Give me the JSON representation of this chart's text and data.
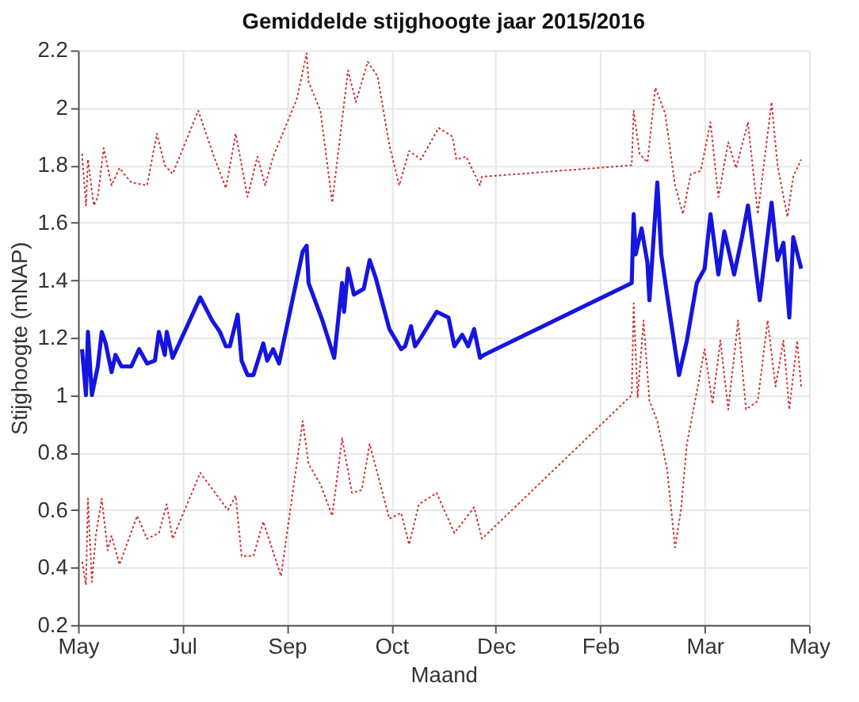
{
  "chart_data": {
    "type": "line",
    "title": "Gemiddelde stijghoogte jaar 2015/2016",
    "xlabel": "Maand",
    "ylabel": "Stijghoogte (mNAP)",
    "xlim": [
      "2015-05-18",
      "2016-05-23"
    ],
    "xticks": [
      {
        "value": "2015-05-18",
        "label": "May"
      },
      {
        "value": "2015-07-10",
        "label": "Jul"
      },
      {
        "value": "2015-09-01",
        "label": "Sep"
      },
      {
        "value": "2015-10-24",
        "label": "Oct"
      },
      {
        "value": "2015-12-16",
        "label": "Dec"
      },
      {
        "value": "2016-02-07",
        "label": "Feb"
      },
      {
        "value": "2016-03-31",
        "label": "Mar"
      },
      {
        "value": "2016-05-23",
        "label": "May"
      }
    ],
    "ylim": [
      0.2,
      2.2
    ],
    "yticks": [
      0.2,
      0.4,
      0.6,
      0.8,
      1,
      1.2,
      1.4,
      1.6,
      1.8,
      2,
      2.2
    ],
    "grid": true,
    "marker": "none",
    "series": [
      {
        "color": "#d03030",
        "line_style": "dotted",
        "x": [
          "2015-05-20",
          "2015-05-22",
          "2015-05-23",
          "2015-05-26",
          "2015-05-28",
          "2015-05-31",
          "2015-06-04",
          "2015-06-08",
          "2015-06-14",
          "2015-06-22",
          "2015-06-27",
          "2015-07-01",
          "2015-07-05",
          "2015-07-18",
          "2015-07-26",
          "2015-08-01",
          "2015-08-06",
          "2015-08-12",
          "2015-08-17",
          "2015-08-21",
          "2015-08-25",
          "2015-09-06",
          "2015-09-11",
          "2015-09-12",
          "2015-09-18",
          "2015-09-24",
          "2015-10-02",
          "2015-10-06",
          "2015-10-12",
          "2015-10-17",
          "2015-10-23",
          "2015-10-28",
          "2015-11-02",
          "2015-11-08",
          "2015-11-17",
          "2015-11-24",
          "2015-11-26",
          "2015-12-01",
          "2015-12-08",
          "2015-12-09",
          "2016-02-23",
          "2016-02-24",
          "2016-02-27",
          "2016-03-02",
          "2016-03-06",
          "2016-03-11",
          "2016-03-16",
          "2016-03-20",
          "2016-03-24",
          "2016-03-29",
          "2016-04-03",
          "2016-04-07",
          "2016-04-12",
          "2016-04-16",
          "2016-04-22",
          "2016-04-27",
          "2016-05-04",
          "2016-05-07",
          "2016-05-12",
          "2016-05-15",
          "2016-05-19"
        ],
        "values": [
          1.84,
          1.66,
          1.82,
          1.66,
          1.69,
          1.86,
          1.73,
          1.79,
          1.74,
          1.73,
          1.91,
          1.8,
          1.77,
          1.99,
          1.83,
          1.72,
          1.91,
          1.69,
          1.83,
          1.73,
          1.83,
          2.03,
          2.19,
          2.09,
          1.99,
          1.67,
          2.13,
          2.02,
          2.16,
          2.11,
          1.87,
          1.73,
          1.85,
          1.82,
          1.93,
          1.9,
          1.82,
          1.83,
          1.73,
          1.76,
          1.8,
          1.99,
          1.84,
          1.81,
          2.07,
          1.98,
          1.73,
          1.63,
          1.77,
          1.78,
          1.95,
          1.69,
          1.88,
          1.79,
          1.95,
          1.63,
          2.02,
          1.8,
          1.62,
          1.76,
          1.82
        ]
      },
      {
        "color": "#1515e0",
        "line_style": "solid",
        "x": [
          "2015-05-20",
          "2015-05-22",
          "2015-05-23",
          "2015-05-25",
          "2015-05-28",
          "2015-05-30",
          "2015-06-01",
          "2015-06-04",
          "2015-06-06",
          "2015-06-09",
          "2015-06-14",
          "2015-06-18",
          "2015-06-22",
          "2015-06-26",
          "2015-06-28",
          "2015-07-01",
          "2015-07-02",
          "2015-07-05",
          "2015-07-19",
          "2015-07-25",
          "2015-07-29",
          "2015-08-01",
          "2015-08-03",
          "2015-08-07",
          "2015-08-09",
          "2015-08-12",
          "2015-08-15",
          "2015-08-20",
          "2015-08-22",
          "2015-08-25",
          "2015-08-28",
          "2015-09-09",
          "2015-09-11",
          "2015-09-12",
          "2015-09-19",
          "2015-09-25",
          "2015-09-29",
          "2015-09-30",
          "2015-10-02",
          "2015-10-05",
          "2015-10-10",
          "2015-10-13",
          "2015-10-16",
          "2015-10-23",
          "2015-10-29",
          "2015-10-31",
          "2015-11-03",
          "2015-11-05",
          "2015-11-08",
          "2015-11-16",
          "2015-11-22",
          "2015-11-25",
          "2015-11-29",
          "2015-12-02",
          "2015-12-05",
          "2015-12-08",
          "2015-12-10",
          "2016-02-23",
          "2016-02-24",
          "2016-02-25",
          "2016-02-28",
          "2016-03-02",
          "2016-03-03",
          "2016-03-07",
          "2016-03-09",
          "2016-03-13",
          "2016-03-18",
          "2016-03-22",
          "2016-03-27",
          "2016-03-31",
          "2016-04-03",
          "2016-04-07",
          "2016-04-10",
          "2016-04-15",
          "2016-04-19",
          "2016-04-22",
          "2016-04-28",
          "2016-05-04",
          "2016-05-07",
          "2016-05-10",
          "2016-05-13",
          "2016-05-15",
          "2016-05-19"
        ],
        "values": [
          1.16,
          1.0,
          1.22,
          1.0,
          1.1,
          1.22,
          1.18,
          1.08,
          1.14,
          1.1,
          1.1,
          1.16,
          1.11,
          1.12,
          1.22,
          1.14,
          1.22,
          1.13,
          1.34,
          1.26,
          1.22,
          1.17,
          1.17,
          1.28,
          1.12,
          1.07,
          1.07,
          1.18,
          1.12,
          1.16,
          1.11,
          1.5,
          1.52,
          1.39,
          1.26,
          1.13,
          1.39,
          1.29,
          1.44,
          1.35,
          1.37,
          1.47,
          1.41,
          1.23,
          1.16,
          1.17,
          1.24,
          1.17,
          1.2,
          1.29,
          1.27,
          1.17,
          1.21,
          1.17,
          1.23,
          1.13,
          1.14,
          1.39,
          1.63,
          1.49,
          1.58,
          1.46,
          1.33,
          1.74,
          1.49,
          1.3,
          1.07,
          1.19,
          1.39,
          1.44,
          1.63,
          1.42,
          1.57,
          1.42,
          1.55,
          1.66,
          1.33,
          1.67,
          1.47,
          1.53,
          1.27,
          1.55,
          1.44
        ]
      },
      {
        "color": "#d03030",
        "line_style": "dotted",
        "x": [
          "2015-05-20",
          "2015-05-22",
          "2015-05-23",
          "2015-05-25",
          "2015-05-27",
          "2015-05-30",
          "2015-06-02",
          "2015-06-04",
          "2015-06-08",
          "2015-06-17",
          "2015-06-22",
          "2015-06-28",
          "2015-07-02",
          "2015-07-05",
          "2015-07-19",
          "2015-08-02",
          "2015-08-06",
          "2015-08-09",
          "2015-08-15",
          "2015-08-20",
          "2015-08-29",
          "2015-09-09",
          "2015-09-12",
          "2015-09-18",
          "2015-09-24",
          "2015-09-29",
          "2015-10-04",
          "2015-10-09",
          "2015-10-13",
          "2015-10-23",
          "2015-10-29",
          "2015-11-02",
          "2015-11-07",
          "2015-11-16",
          "2015-11-25",
          "2015-12-05",
          "2015-12-09",
          "2016-02-23",
          "2016-02-24",
          "2016-02-26",
          "2016-02-29",
          "2016-03-03",
          "2016-03-07",
          "2016-03-12",
          "2016-03-16",
          "2016-03-19",
          "2016-03-22",
          "2016-03-27",
          "2016-03-31",
          "2016-04-04",
          "2016-04-08",
          "2016-04-12",
          "2016-04-17",
          "2016-04-21",
          "2016-04-27",
          "2016-05-02",
          "2016-05-06",
          "2016-05-10",
          "2016-05-13",
          "2016-05-17",
          "2016-05-19"
        ],
        "values": [
          0.42,
          0.34,
          0.64,
          0.35,
          0.51,
          0.64,
          0.46,
          0.51,
          0.41,
          0.58,
          0.5,
          0.52,
          0.62,
          0.5,
          0.73,
          0.6,
          0.65,
          0.44,
          0.44,
          0.56,
          0.37,
          0.91,
          0.76,
          0.69,
          0.58,
          0.85,
          0.66,
          0.67,
          0.83,
          0.57,
          0.59,
          0.48,
          0.62,
          0.66,
          0.52,
          0.61,
          0.5,
          1.0,
          1.32,
          0.99,
          1.26,
          0.98,
          0.91,
          0.74,
          0.47,
          0.6,
          0.83,
          1.01,
          1.16,
          0.97,
          1.19,
          0.95,
          1.26,
          0.95,
          0.98,
          1.26,
          1.03,
          1.19,
          0.95,
          1.19,
          1.03
        ]
      }
    ]
  }
}
